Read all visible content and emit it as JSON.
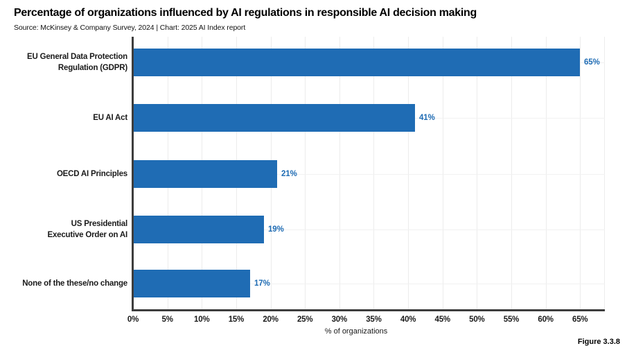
{
  "chart_data": {
    "type": "bar",
    "orientation": "horizontal",
    "title": "Percentage of organizations influenced by AI regulations in responsible AI decision making",
    "subtitle": "Source: McKinsey & Company Survey, 2024 | Chart: 2025 AI Index report",
    "categories": [
      "EU General Data Protection Regulation (GDPR)",
      "EU AI Act",
      "OECD AI Principles",
      "US Presidential Executive Order on AI",
      "None of the these/no change"
    ],
    "category_lines": [
      [
        "EU General Data Protection",
        "Regulation (GDPR)"
      ],
      [
        "EU AI Act"
      ],
      [
        "OECD AI Principles"
      ],
      [
        "US Presidential",
        "Executive Order on AI"
      ],
      [
        "None of the these/no change"
      ]
    ],
    "values": [
      65,
      41,
      21,
      19,
      17
    ],
    "value_labels": [
      "65%",
      "41%",
      "21%",
      "19%",
      "17%"
    ],
    "xlabel": "% of organizations",
    "x_ticks": [
      "0%",
      "5%",
      "10%",
      "15%",
      "20%",
      "25%",
      "30%",
      "35%",
      "40%",
      "45%",
      "50%",
      "55%",
      "60%",
      "65%"
    ],
    "x_tick_values": [
      0,
      5,
      10,
      15,
      20,
      25,
      30,
      35,
      40,
      45,
      50,
      55,
      60,
      65
    ],
    "xlim": [
      0,
      68.6
    ],
    "grid": true,
    "legend": null,
    "colors": {
      "bar": "#1f6cb4",
      "value_label": "#1f6cb4",
      "axis": "#3d3d3d",
      "vgrid": "#ececec",
      "hgrid": "#f1f1f1",
      "text": "#1a1a1a",
      "background": "#ffffff"
    }
  },
  "figure_label": "Figure 3.3.8"
}
